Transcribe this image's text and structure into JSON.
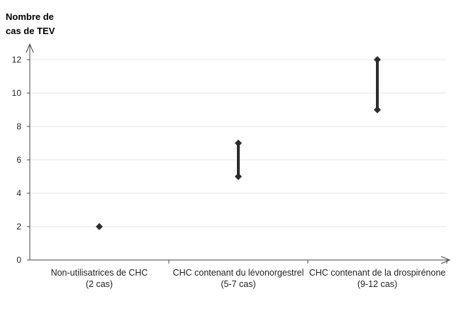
{
  "chart_data": {
    "type": "range",
    "ylabel_line1": "Nombre de",
    "ylabel_line2": "cas de TEV",
    "ylim": [
      0,
      12
    ],
    "yticks": [
      "0",
      "2",
      "4",
      "6",
      "8",
      "10",
      "12"
    ],
    "grid": true,
    "categories": [
      {
        "line1": "Non-utilisatrices de CHC",
        "line2": "(2 cas)",
        "low": 2,
        "high": 2
      },
      {
        "line1": "CHC contenant du lévonorgestrel",
        "line2": "(5-7 cas)",
        "low": 5,
        "high": 7
      },
      {
        "line1": "CHC contenant de la drospirénone",
        "line2": "(9-12 cas)",
        "low": 9,
        "high": 12
      }
    ],
    "colors": {
      "marker": "#2b2b2b",
      "axis": "#444444",
      "grid": "#e6e6e6"
    }
  }
}
